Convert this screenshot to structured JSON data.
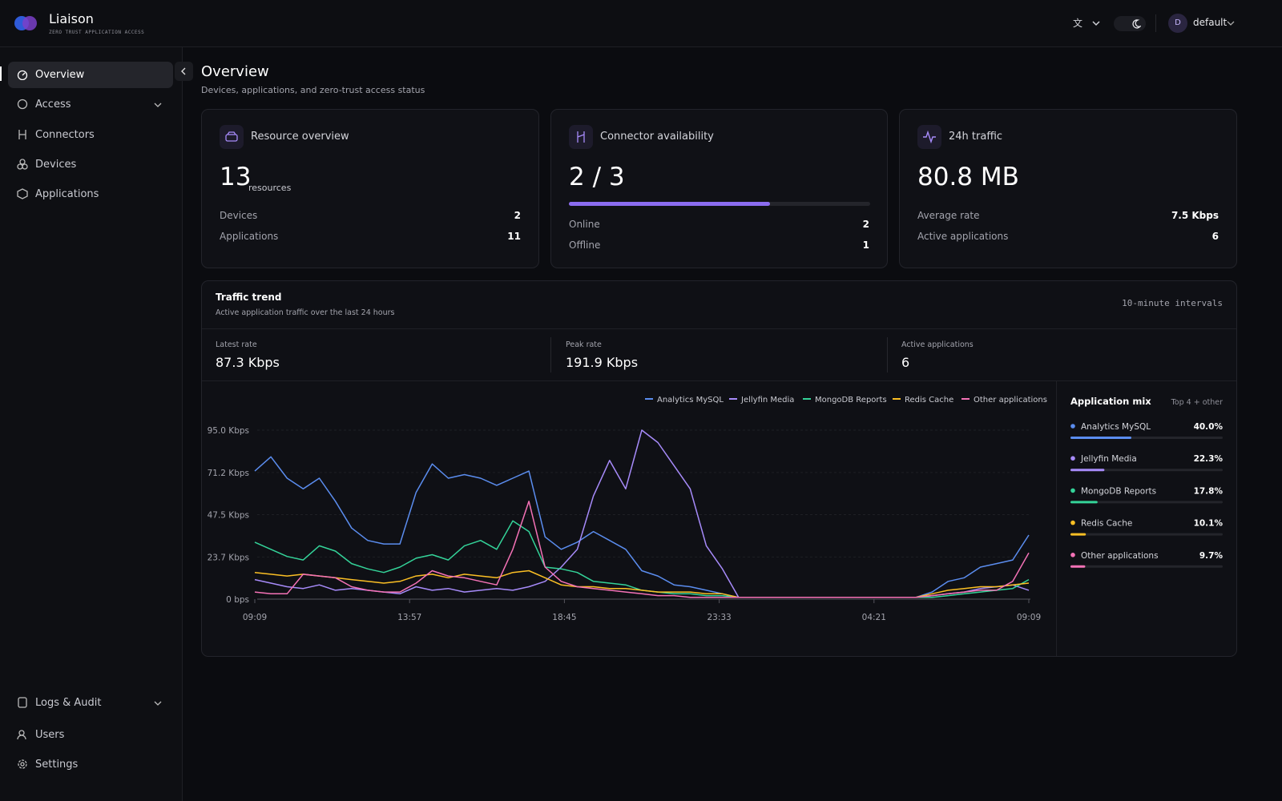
{
  "brand": {
    "name": "Liaison",
    "tagline": "ZERO TRUST APPLICATION ACCESS"
  },
  "topbar": {
    "user_initial": "D",
    "user": "default"
  },
  "nav": {
    "main": [
      "Overview",
      "Access",
      "Connectors",
      "Devices",
      "Applications"
    ],
    "bottom": [
      "Logs & Audit",
      "Users",
      "Settings"
    ]
  },
  "page": {
    "title": "Overview",
    "subtitle": "Devices, applications, and zero-trust access status"
  },
  "cards": [
    {
      "title": "Resource overview",
      "value": "13",
      "unit": "resources",
      "rows": [
        {
          "label": "Devices",
          "value": 2
        },
        {
          "label": "Applications",
          "value": 11
        }
      ]
    },
    {
      "title": "Connector availability",
      "value": "2 / 3",
      "rows": [
        {
          "label": "Online",
          "value": 2
        },
        {
          "label": "Offline",
          "value": 1
        }
      ]
    },
    {
      "title": "24h traffic",
      "value": "80.8 MB",
      "rows": [
        {
          "label": "Average rate",
          "value": "7.5 Kbps"
        },
        {
          "label": "Active applications",
          "value": 6
        }
      ]
    }
  ],
  "traffic": {
    "title": "Traffic trend",
    "subtitle": "Active application traffic over the last 24 hours",
    "interval": "10-minute intervals",
    "stats": [
      {
        "label": "Latest rate",
        "value": "87.3 Kbps"
      },
      {
        "label": "Peak rate",
        "value": "191.9 Kbps"
      },
      {
        "label": "Active applications",
        "value": "6"
      }
    ]
  },
  "chart_data": [
    {
      "type": "line",
      "xlim": [
        0,
        48
      ],
      "xticks": [
        {
          "value": 0,
          "label": "09:09"
        },
        {
          "value": 9.6,
          "label": "13:57"
        },
        {
          "value": 19.2,
          "label": "18:45"
        },
        {
          "value": 28.8,
          "label": "23:33"
        },
        {
          "value": 38.4,
          "label": "04:21"
        },
        {
          "value": 48,
          "label": "09:09"
        }
      ],
      "ylim": [
        0,
        95
      ],
      "yticks": [
        {
          "value": 0,
          "label": "0 bps"
        },
        {
          "value": 23.7,
          "label": "23.7 Kbps"
        },
        {
          "value": 47.5,
          "label": "47.5 Kbps"
        },
        {
          "value": 71.2,
          "label": "71.2 Kbps"
        },
        {
          "value": 95,
          "label": "95.0 Kbps"
        }
      ],
      "grid": true,
      "series": [
        {
          "name": "Analytics MySQL",
          "color": "#5b8def",
          "values": [
            72,
            80,
            68,
            62,
            68,
            55,
            40,
            33,
            31,
            31,
            60,
            76,
            68,
            70,
            68,
            64,
            68,
            72,
            35,
            28,
            32,
            38,
            33,
            28,
            16,
            13,
            8,
            7,
            5,
            3,
            1,
            1,
            1,
            1,
            1,
            1,
            1,
            1,
            1,
            1,
            1,
            1,
            4,
            10,
            12,
            18,
            20,
            22,
            36
          ]
        },
        {
          "name": "Jellyfin Media",
          "color": "#a78bfa",
          "values": [
            11,
            9,
            7,
            6,
            8,
            5,
            6,
            5,
            4,
            3,
            7,
            5,
            6,
            4,
            5,
            6,
            5,
            7,
            10,
            18,
            28,
            58,
            78,
            62,
            95,
            88,
            75,
            62,
            30,
            17,
            1,
            1,
            1,
            1,
            1,
            1,
            1,
            1,
            1,
            1,
            1,
            1,
            2,
            3,
            4,
            6,
            7,
            8,
            5
          ]
        },
        {
          "name": "MongoDB Reports",
          "color": "#34d399",
          "values": [
            32,
            28,
            24,
            22,
            30,
            27,
            20,
            17,
            15,
            18,
            23,
            25,
            22,
            30,
            33,
            28,
            44,
            38,
            18,
            17,
            15,
            10,
            9,
            8,
            5,
            4,
            3,
            3,
            2,
            2,
            1,
            1,
            1,
            1,
            1,
            1,
            1,
            1,
            1,
            1,
            1,
            1,
            1,
            2,
            3,
            4,
            5,
            6,
            11
          ]
        },
        {
          "name": "Redis Cache",
          "color": "#fbbf24",
          "values": [
            15,
            14,
            13,
            14,
            13,
            12,
            11,
            10,
            9,
            10,
            13,
            14,
            12,
            14,
            13,
            12,
            15,
            16,
            12,
            8,
            7,
            7,
            6,
            6,
            5,
            4,
            4,
            4,
            3,
            3,
            1,
            1,
            1,
            1,
            1,
            1,
            1,
            1,
            1,
            1,
            1,
            1,
            3,
            5,
            6,
            7,
            7,
            8,
            9
          ]
        },
        {
          "name": "Other applications",
          "color": "#f472b6",
          "values": [
            4,
            3,
            3,
            14,
            13,
            12,
            7,
            5,
            4,
            4,
            9,
            16,
            13,
            12,
            10,
            8,
            28,
            55,
            18,
            10,
            7,
            6,
            5,
            4,
            3,
            2,
            2,
            1,
            1,
            1,
            1,
            1,
            1,
            1,
            1,
            1,
            1,
            1,
            1,
            1,
            1,
            1,
            2,
            3,
            4,
            5,
            5,
            10,
            26
          ]
        }
      ]
    },
    {
      "type": "bar",
      "title": "Application mix",
      "subtitle": "Top 4 + other",
      "xlim": [
        0,
        100
      ],
      "categories": [
        "Analytics MySQL",
        "Jellyfin Media",
        "MongoDB Reports",
        "Redis Cache",
        "Other applications"
      ],
      "values": [
        40,
        22.3,
        17.8,
        10.1,
        9.7
      ],
      "value_labels": [
        "40.0%",
        "22.3%",
        "17.8%",
        "10.1%",
        "9.7%"
      ],
      "colors": [
        "#5b8def",
        "#a78bfa",
        "#34d399",
        "#fbbf24",
        "#f472b6"
      ]
    }
  ]
}
